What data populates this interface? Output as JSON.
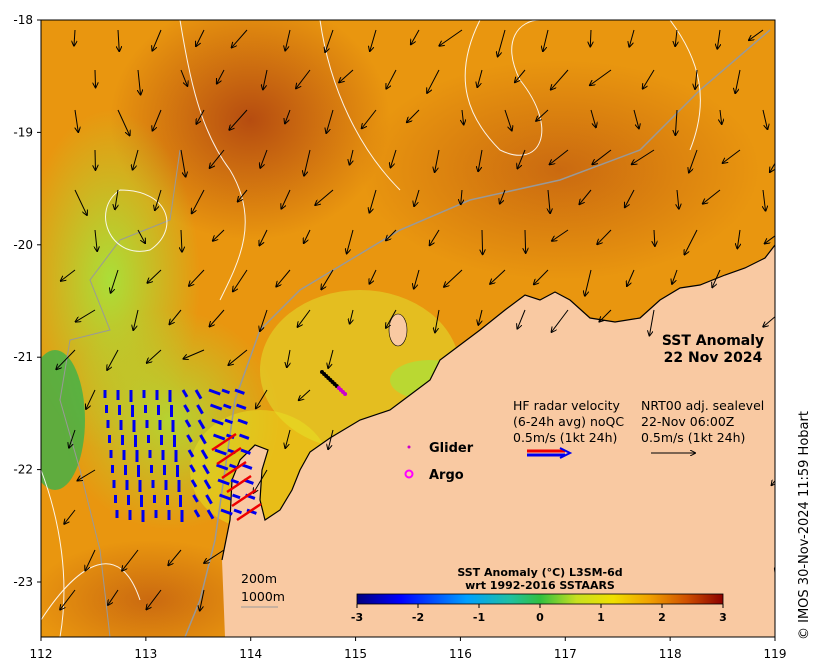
{
  "map": {
    "lon_ticks": [
      "112",
      "113",
      "114",
      "115",
      "116",
      "117",
      "118",
      "119"
    ],
    "lat_ticks": [
      "-18",
      "-19",
      "-20",
      "-21",
      "-22",
      "-23"
    ],
    "title_line1": "SST Anomaly",
    "title_line2": "22 Nov 2024",
    "hf_label_1": "HF radar velocity",
    "hf_label_2": "(6-24h avg) noQC",
    "hf_label_3": "0.5m/s (1kt 24h)",
    "sl_label_1": "NRT00 adj. sealevel",
    "sl_label_2": "22-Nov 06:00Z",
    "sl_label_3": "0.5m/s (1kt 24h)",
    "glider_label": "Glider",
    "argo_label": "Argo",
    "depth_200": "200m",
    "depth_1000": "1000m",
    "colorbar_title_1": "SST Anomaly (°C) L3SM-6d",
    "colorbar_title_2": "wrt 1992-2016 SSTAARS",
    "colorbar_ticks": [
      "-3",
      "-2",
      "-1",
      "0",
      "1",
      "2",
      "3"
    ],
    "credit": "© IMOS 30-Nov-2024 11:59 Hobart"
  },
  "colors": {
    "land": "#f9c9a2",
    "warm_dark": "#b34a10",
    "warm_orange": "#e6900f",
    "warm": "#f0a91a",
    "yellow": "#e8e421",
    "yellow_green": "#a8e23a",
    "green": "#3cb24a",
    "hf_radar": "#0000ee",
    "hf_radar_red": "#ee0000",
    "glider": "#cc00cc",
    "argo": "#ff00ff"
  }
}
